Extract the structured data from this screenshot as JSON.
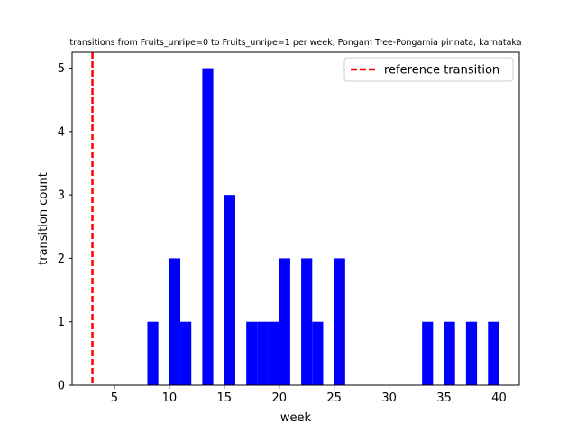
{
  "chart_data": {
    "type": "bar",
    "title": "transitions from Fruits_unripe=0 to Fruits_unripe=1 per week, Pongam Tree-Pongamia pinnata, karnataka",
    "xlabel": "week",
    "ylabel": "transition count",
    "xlim": [
      1.15,
      41.85
    ],
    "ylim": [
      0,
      5.25
    ],
    "xticks": [
      5,
      10,
      15,
      20,
      25,
      30,
      35,
      40
    ],
    "yticks": [
      0,
      1,
      2,
      3,
      4,
      5
    ],
    "grid": false,
    "bar_color": "#0000ff",
    "bin_width": 1,
    "bars": [
      {
        "x": 8,
        "value": 1
      },
      {
        "x": 10,
        "value": 2
      },
      {
        "x": 11,
        "value": 1
      },
      {
        "x": 13,
        "value": 5
      },
      {
        "x": 15,
        "value": 3
      },
      {
        "x": 17,
        "value": 1
      },
      {
        "x": 18,
        "value": 1
      },
      {
        "x": 19,
        "value": 1
      },
      {
        "x": 20,
        "value": 2
      },
      {
        "x": 22,
        "value": 2
      },
      {
        "x": 23,
        "value": 1
      },
      {
        "x": 25,
        "value": 2
      },
      {
        "x": 33,
        "value": 1
      },
      {
        "x": 35,
        "value": 1
      },
      {
        "x": 37,
        "value": 1
      },
      {
        "x": 39,
        "value": 1
      }
    ],
    "reference_line": {
      "x": 3,
      "label": "reference transition",
      "color": "#ff0000",
      "style": "dashed"
    },
    "legend": {
      "placement": "top-right"
    }
  }
}
